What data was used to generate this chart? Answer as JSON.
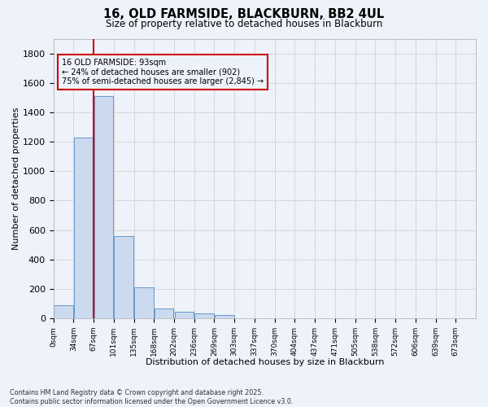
{
  "title": "16, OLD FARMSIDE, BLACKBURN, BB2 4UL",
  "subtitle": "Size of property relative to detached houses in Blackburn",
  "xlabel": "Distribution of detached houses by size in Blackburn",
  "ylabel": "Number of detached properties",
  "footer_line1": "Contains HM Land Registry data © Crown copyright and database right 2025.",
  "footer_line2": "Contains public sector information licensed under the Open Government Licence v3.0.",
  "bar_color": "#ccdaf0",
  "bar_edge_color": "#6699cc",
  "background_color": "#eef2fb",
  "grid_color": "#cccccc",
  "annotation_box_color": "#cc0000",
  "property_line_color": "#cc0000",
  "property_value_bin": 2,
  "annotation_title": "16 OLD FARMSIDE: 93sqm",
  "annotation_line1": "← 24% of detached houses are smaller (902)",
  "annotation_line2": "75% of semi-detached houses are larger (2,845) →",
  "categories": [
    "0sqm",
    "34sqm",
    "67sqm",
    "101sqm",
    "135sqm",
    "168sqm",
    "202sqm",
    "236sqm",
    "269sqm",
    "303sqm",
    "337sqm",
    "370sqm",
    "404sqm",
    "437sqm",
    "471sqm",
    "505sqm",
    "538sqm",
    "572sqm",
    "606sqm",
    "639sqm",
    "673sqm"
  ],
  "values": [
    90,
    1230,
    1510,
    560,
    210,
    65,
    45,
    35,
    25,
    0,
    0,
    0,
    0,
    0,
    0,
    0,
    0,
    0,
    0,
    0,
    0
  ],
  "ylim": [
    0,
    1900
  ],
  "yticks": [
    0,
    200,
    400,
    600,
    800,
    1000,
    1200,
    1400,
    1600,
    1800
  ],
  "n_bins": 21
}
